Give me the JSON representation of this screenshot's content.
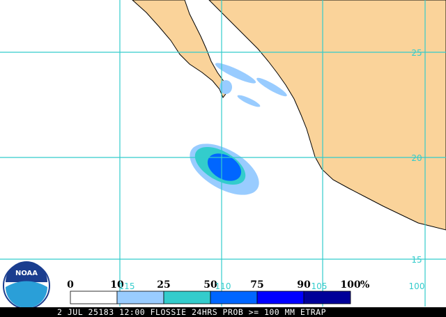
{
  "logo": "NOAA",
  "legend": {
    "labels": [
      "0",
      "10",
      "25",
      "50",
      "75",
      "90",
      "100"
    ],
    "unit": "%",
    "colors": [
      "#ffffff",
      "#99ccff",
      "#33cccc",
      "#0066ff",
      "#0000ff",
      "#000099"
    ]
  },
  "longitudes": [
    "115",
    "110",
    "105",
    "100"
  ],
  "latitudes": [
    "25",
    "20",
    "15"
  ],
  "caption": "2 JUL 25183 12:00 FLOSSIE 24HRS PROB >= 100 MM ETRAP"
}
